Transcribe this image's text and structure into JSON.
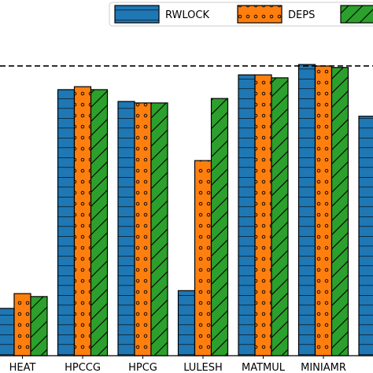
{
  "chart_data": {
    "type": "bar",
    "categories": [
      "HEAT",
      "HPCCG",
      "HPCG",
      "LULESH",
      "MATMUL",
      "MINIAMR",
      ""
    ],
    "series": [
      {
        "name": "RWLOCK",
        "values": [
          0.16,
          0.9,
          0.86,
          0.22,
          0.95,
          0.985,
          0.81
        ],
        "color": "#1f77b4",
        "hatch": "horizontal-lines"
      },
      {
        "name": "DEPS",
        "values": [
          0.21,
          0.91,
          0.855,
          0.66,
          0.95,
          0.98,
          null
        ],
        "color": "#ff7f0e",
        "hatch": "small-circles"
      },
      {
        "name": "",
        "values": [
          0.2,
          0.9,
          0.855,
          0.87,
          0.94,
          0.975,
          null
        ],
        "color": "#2ca02c",
        "hatch": "diagonal-lines"
      }
    ],
    "reference_line": {
      "value": 0.98,
      "style": "dashed"
    },
    "ylim": [
      0,
      1.15
    ],
    "legend": {
      "placement": "top-right"
    },
    "grid": false
  }
}
